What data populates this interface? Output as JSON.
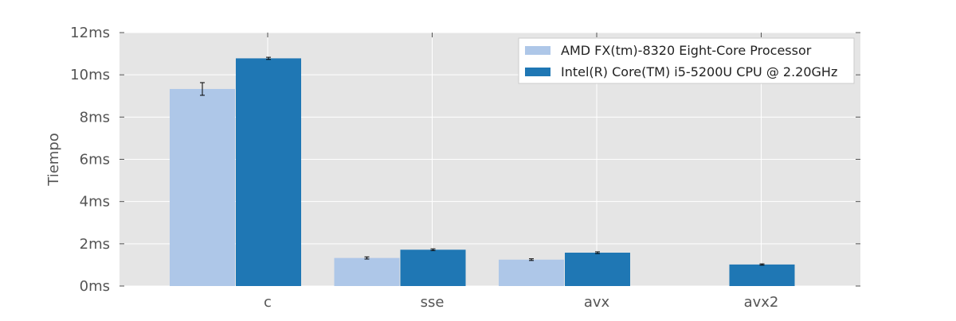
{
  "chart_data": {
    "type": "bar",
    "categories": [
      "c",
      "sse",
      "avx",
      "avx2"
    ],
    "series": [
      {
        "name": "AMD FX(tm)-8320 Eight-Core Processor",
        "color": "#aec7e8",
        "values": [
          9.33,
          1.33,
          1.25,
          null
        ],
        "errors": [
          0.3,
          0.05,
          0.04,
          null
        ]
      },
      {
        "name": "Intel(R) Core(TM) i5-5200U CPU @ 2.20GHz",
        "color": "#1f77b4",
        "values": [
          10.78,
          1.72,
          1.58,
          1.02
        ],
        "errors": [
          0.05,
          0.04,
          0.04,
          0.03
        ]
      }
    ],
    "ylabel": "Tiempo",
    "xlabel": "",
    "ylim": [
      0,
      12
    ],
    "yticks": [
      "0ms",
      "2ms",
      "4ms",
      "6ms",
      "8ms",
      "10ms",
      "12ms"
    ],
    "grid": true,
    "legend_position": "top-right",
    "background_color": "#e5e5e5",
    "grid_color": "#ffffff"
  }
}
